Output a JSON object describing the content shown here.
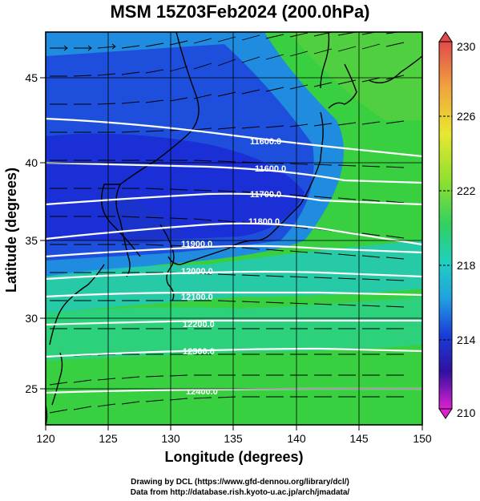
{
  "title": "MSM 15Z03Feb2024 (200.0hPa)",
  "xlabel": "Longitude (degrees)",
  "ylabel": "Latitude  (degrees)",
  "xticks": [
    "120",
    "125",
    "130",
    "135",
    "140",
    "145",
    "150"
  ],
  "yticks": [
    "25",
    "30",
    "35",
    "40",
    "45"
  ],
  "colorbar": {
    "labels": [
      "230",
      "226",
      "222",
      "218",
      "214",
      "210"
    ],
    "range": [
      210,
      230
    ]
  },
  "contours": [
    {
      "label": "11600.0"
    },
    {
      "label": "11600.0"
    },
    {
      "label": "11700.0"
    },
    {
      "label": "11800.0"
    },
    {
      "label": "11900.0"
    },
    {
      "label": "12000.0"
    },
    {
      "label": "12100.0"
    },
    {
      "label": "12200.0"
    },
    {
      "label": "12300.0"
    },
    {
      "label": "12400.0"
    }
  ],
  "credits": {
    "line1": "Drawing by DCL (https://www.gfd-dennou.org/library/dcl/)",
    "line2": "Data from http://database.rish.kyoto-u.ac.jp/arch/jmadata/"
  },
  "colors": {
    "cold": "#1a2fd6",
    "mid": "#1bd6c0",
    "warm": "#3fd23a",
    "contour": "#ffffff"
  }
}
